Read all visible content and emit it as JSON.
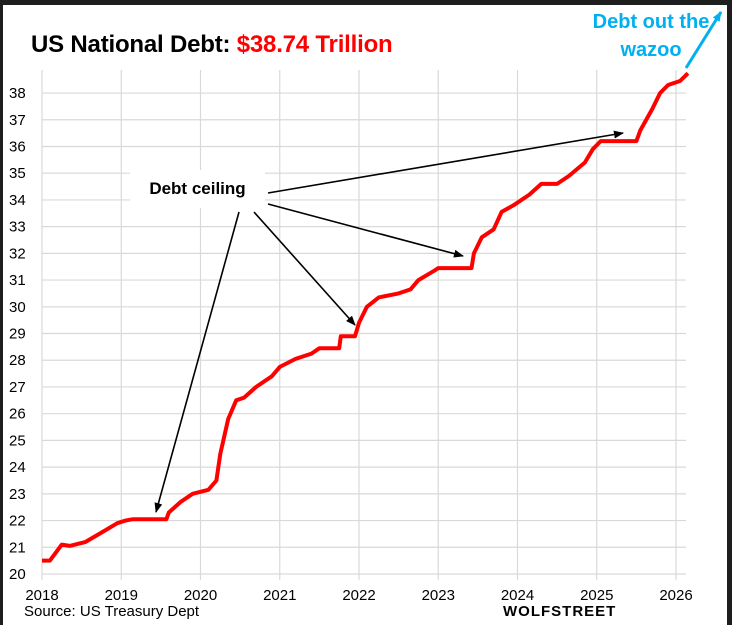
{
  "header": {
    "title_prefix": "US National Debt: ",
    "title_value": "$38.74 Trillion"
  },
  "annotations": {
    "debt_ceiling_label": "Debt ceiling",
    "wazoo_line1": "Debt out the",
    "wazoo_line2": "wazoo"
  },
  "footer": {
    "source": "Source: US Treasury Dept",
    "brand": "WOLFSTREET"
  },
  "colors": {
    "series": "#ff0000",
    "title_accent": "#ff0000",
    "wazoo": "#00b0f0",
    "grid": "#d9d9d9",
    "arrow": "#000000"
  },
  "chart_data": {
    "type": "line",
    "title": "US National Debt: $38.74 Trillion",
    "xlabel": "",
    "ylabel": "",
    "xlim": [
      2018,
      2026
    ],
    "ylim": [
      20,
      38
    ],
    "grid": true,
    "legend": "none",
    "x_ticks": [
      "2018",
      "2019",
      "2020",
      "2021",
      "2022",
      "2023",
      "2024",
      "2025",
      "2026"
    ],
    "y_ticks": [
      "20",
      "21",
      "22",
      "23",
      "24",
      "25",
      "26",
      "27",
      "28",
      "29",
      "30",
      "31",
      "32",
      "33",
      "34",
      "35",
      "36",
      "37",
      "38"
    ],
    "series": [
      {
        "name": "US National Debt (trillions $)",
        "x": [
          2018.0,
          2018.1,
          2018.25,
          2018.35,
          2018.55,
          2018.75,
          2018.95,
          2019.05,
          2019.15,
          2019.57,
          2019.6,
          2019.75,
          2019.9,
          2020.1,
          2020.2,
          2020.25,
          2020.35,
          2020.45,
          2020.55,
          2020.7,
          2020.9,
          2021.0,
          2021.2,
          2021.4,
          2021.5,
          2021.75,
          2021.77,
          2021.95,
          2022.0,
          2022.1,
          2022.25,
          2022.5,
          2022.65,
          2022.75,
          2022.95,
          2023.0,
          2023.42,
          2023.45,
          2023.55,
          2023.7,
          2023.8,
          2023.95,
          2024.15,
          2024.3,
          2024.5,
          2024.65,
          2024.85,
          2024.95,
          2025.05,
          2025.5,
          2025.55,
          2025.7,
          2025.8,
          2025.9,
          2026.05,
          2026.15
        ],
        "values": [
          20.5,
          20.5,
          21.1,
          21.05,
          21.2,
          21.55,
          21.9,
          22.0,
          22.05,
          22.05,
          22.3,
          22.7,
          23.0,
          23.15,
          23.5,
          24.5,
          25.8,
          26.5,
          26.6,
          27.0,
          27.4,
          27.75,
          28.05,
          28.25,
          28.45,
          28.45,
          28.9,
          28.9,
          29.4,
          30.0,
          30.35,
          30.5,
          30.65,
          31.0,
          31.35,
          31.45,
          31.45,
          32.0,
          32.6,
          32.9,
          33.55,
          33.8,
          34.2,
          34.6,
          34.6,
          34.9,
          35.4,
          35.9,
          36.2,
          36.2,
          36.6,
          37.4,
          38.0,
          38.3,
          38.45,
          38.74
        ]
      }
    ],
    "annotations": [
      {
        "text": "Debt ceiling",
        "arrows_to": [
          [
            2019.43,
            22.3
          ],
          [
            2021.98,
            29.2
          ],
          [
            2023.33,
            31.9
          ],
          [
            2025.34,
            36.55
          ]
        ]
      },
      {
        "text": "Debt out the wazoo",
        "arrow": "up-right at end of series"
      }
    ]
  }
}
